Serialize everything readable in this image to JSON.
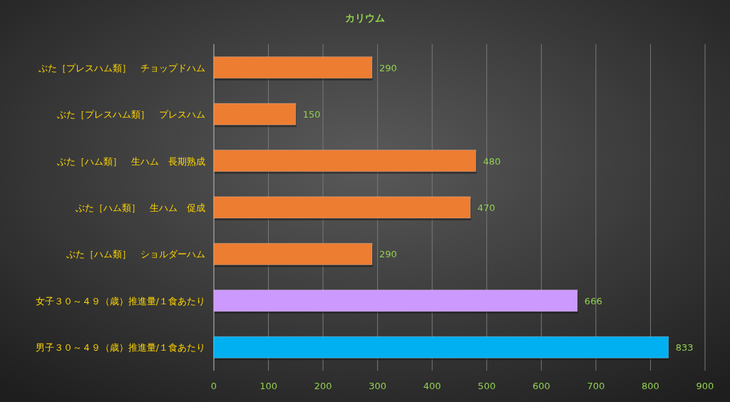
{
  "chart_data": {
    "type": "bar",
    "orientation": "horizontal",
    "title": "カリウム",
    "categories": [
      "ぶた［プレスハム類］　チョップドハム",
      "ぶた［プレスハム類］　プレスハム",
      "ぶた［ハム類］　生ハム　長期熟成",
      "ぶた［ハム類］　生ハム　促成",
      "ぶた［ハム類］　ショルダーハム",
      "女子３０～４９（歳）推進量/１食あたり",
      "男子３０～４９（歳）推進量/１食あたり"
    ],
    "values": [
      290,
      150,
      480,
      470,
      290,
      666,
      833
    ],
    "colors": [
      "#ed7d31",
      "#ed7d31",
      "#ed7d31",
      "#ed7d31",
      "#ed7d31",
      "#cc99ff",
      "#00b0f0"
    ],
    "xlim": [
      0,
      900
    ],
    "xticks": [
      0,
      100,
      200,
      300,
      400,
      500,
      600,
      700,
      800,
      900
    ],
    "grid": "x",
    "data_labels": true
  }
}
